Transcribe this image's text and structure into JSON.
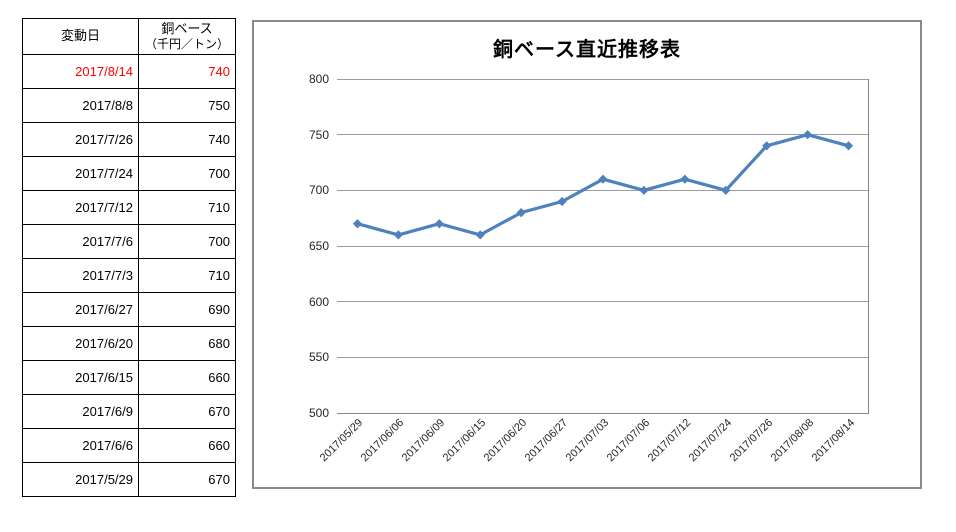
{
  "table": {
    "col1_header": "変動日",
    "col2_header_line1": "銅ベース",
    "col2_header_line2": "（千円／トン）",
    "highlight_color": "#FF0000",
    "rows": [
      {
        "date": "2017/8/14",
        "price": "740",
        "highlight": true
      },
      {
        "date": "2017/8/8",
        "price": "750",
        "highlight": false
      },
      {
        "date": "2017/7/26",
        "price": "740",
        "highlight": false
      },
      {
        "date": "2017/7/24",
        "price": "700",
        "highlight": false
      },
      {
        "date": "2017/7/12",
        "price": "710",
        "highlight": false
      },
      {
        "date": "2017/7/6",
        "price": "700",
        "highlight": false
      },
      {
        "date": "2017/7/3",
        "price": "710",
        "highlight": false
      },
      {
        "date": "2017/6/27",
        "price": "690",
        "highlight": false
      },
      {
        "date": "2017/6/20",
        "price": "680",
        "highlight": false
      },
      {
        "date": "2017/6/15",
        "price": "660",
        "highlight": false
      },
      {
        "date": "2017/6/9",
        "price": "670",
        "highlight": false
      },
      {
        "date": "2017/6/6",
        "price": "660",
        "highlight": false
      },
      {
        "date": "2017/5/29",
        "price": "670",
        "highlight": false
      }
    ]
  },
  "chart_data": {
    "type": "line",
    "title": "銅ベース直近推移表",
    "categories": [
      "2017/05/29",
      "2017/06/06",
      "2017/06/09",
      "2017/06/15",
      "2017/06/20",
      "2017/06/27",
      "2017/07/03",
      "2017/07/06",
      "2017/07/12",
      "2017/07/24",
      "2017/07/26",
      "2017/08/08",
      "2017/08/14"
    ],
    "values": [
      670,
      660,
      670,
      660,
      680,
      690,
      710,
      700,
      710,
      700,
      740,
      750,
      740
    ],
    "xlabel": "",
    "ylabel": "",
    "ylim": [
      500,
      800
    ],
    "yticks": [
      500,
      550,
      600,
      650,
      700,
      750,
      800
    ],
    "grid": true,
    "legend": "none",
    "line_color": "#4F81BD",
    "marker": "diamond",
    "xlabel_rotation": 45
  }
}
